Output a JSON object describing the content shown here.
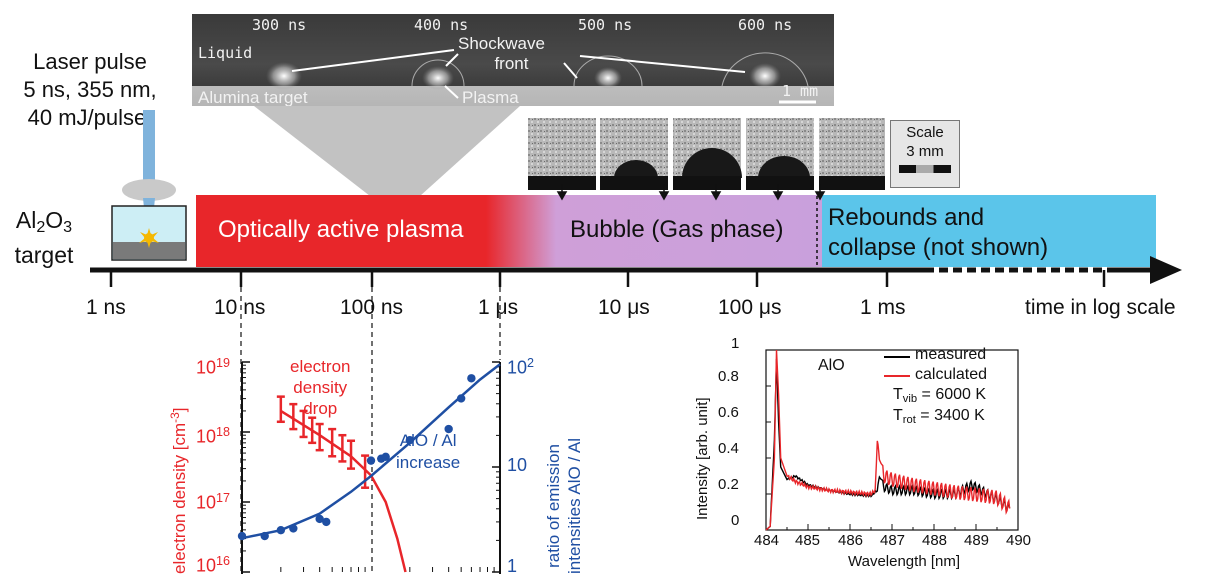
{
  "laser": {
    "line1": "Laser pulse",
    "line2": "5 ns, 355 nm,",
    "line3": "40 mJ/pulse,"
  },
  "target": {
    "formula_base": "Al",
    "formula_sub1": "2",
    "formula_mid": "O",
    "formula_sub2": "3",
    "word": "target"
  },
  "shockwave_photo": {
    "times": [
      "300 ns",
      "400 ns",
      "500 ns",
      "600 ns"
    ],
    "liquid": "Liquid",
    "shockwave_line1": "Shockwave",
    "shockwave_line2": "front",
    "alumina": "Alumina target",
    "plasma": "Plasma",
    "scalebar": "1 mm"
  },
  "bubble_photos": {
    "scale_line1": "Scale",
    "scale_line2": "3 mm"
  },
  "phases": {
    "plasma": "Optically active plasma",
    "bubble": "Bubble (Gas phase)",
    "rebound_line1": "Rebounds and",
    "rebound_line2": "collapse (not shown)"
  },
  "timeline": {
    "ticks": [
      "1 ns",
      "10 ns",
      "100 ns",
      "1 μs",
      "10 μs",
      "100 μs",
      "1 ms"
    ],
    "axis_label": "time in log scale"
  },
  "colors": {
    "plasma": "#e8262a",
    "bubble": "#c9a0dc",
    "rebound": "#5bc5ea",
    "electron_curve": "#e8262a",
    "ratio_curve": "#1f4fa3",
    "measured": "#000000",
    "calculated": "#e8262a"
  },
  "chart_data": [
    {
      "type": "scatter",
      "left_axis": {
        "label": "electron density [cm",
        "label_sup": "-3",
        "label_end": "]",
        "ticks": [
          "10",
          "10",
          "10",
          "10"
        ],
        "tick_exponents": [
          "19",
          "18",
          "17",
          "16"
        ],
        "ylim": [
          1e+16,
          1e+19
        ],
        "scale": "log"
      },
      "right_axis": {
        "label_line1": "ratio of emission",
        "label_line2": "intensities AlO / Al",
        "ticks": [
          "10",
          "10",
          "1"
        ],
        "tick_exponents": [
          "2",
          "",
          ""
        ],
        "ylim": [
          1,
          100
        ],
        "scale": "log"
      },
      "xlim_ns": [
        10,
        1000
      ],
      "annotations": {
        "electron_line1": "electron",
        "electron_line2": "density",
        "electron_line3": "drop",
        "ratio_line1": "AlO / Al",
        "ratio_line2": "increase"
      },
      "series": [
        {
          "points": [
            {
              "t_ns": 20,
              "ne": 2.2e+18,
              "err": [
                1.4e+18,
                3.2e+18
              ]
            },
            {
              "t_ns": 25,
              "ne": 1.7e+18,
              "err": [
                1.1e+18,
                2.5e+18
              ]
            },
            {
              "t_ns": 30,
              "ne": 1.35e+18,
              "err": [
                8.5e+17,
                2e+18
              ]
            },
            {
              "t_ns": 35,
              "ne": 1.1e+18,
              "err": [
                7e+17,
                1.6e+18
              ]
            },
            {
              "t_ns": 40,
              "ne": 9e+17,
              "err": [
                5.5e+17,
                1.3e+18
              ]
            },
            {
              "t_ns": 50,
              "ne": 7.5e+17,
              "err": [
                4.5e+17,
                1.1e+18
              ]
            },
            {
              "t_ns": 60,
              "ne": 6e+17,
              "err": [
                3.8e+17,
                9e+17
              ]
            },
            {
              "t_ns": 70,
              "ne": 5e+17,
              "err": [
                3e+17,
                7.5e+17
              ]
            },
            {
              "t_ns": 90,
              "ne": 3e+17,
              "err": [
                1.6e+17,
                4.6e+17
              ]
            }
          ],
          "fit": [
            {
              "t_ns": 20,
              "ne": 2e+18
            },
            {
              "t_ns": 40,
              "ne": 9e+17
            },
            {
              "t_ns": 70,
              "ne": 4.5e+17
            },
            {
              "t_ns": 100,
              "ne": 2.4e+17
            },
            {
              "t_ns": 130,
              "ne": 1e+17
            },
            {
              "t_ns": 160,
              "ne": 3e+16
            },
            {
              "t_ns": 185,
              "ne": 1e+16
            }
          ]
        },
        {
          "points": [
            {
              "t_ns": 10,
              "r": 2.2
            },
            {
              "t_ns": 15,
              "r": 2.2
            },
            {
              "t_ns": 20,
              "r": 2.5
            },
            {
              "t_ns": 25,
              "r": 2.6
            },
            {
              "t_ns": 40,
              "r": 3.2
            },
            {
              "t_ns": 45,
              "r": 3.0
            },
            {
              "t_ns": 100,
              "r": 11.5
            },
            {
              "t_ns": 120,
              "r": 12.0
            },
            {
              "t_ns": 130,
              "r": 12.5
            },
            {
              "t_ns": 200,
              "r": 18.0
            },
            {
              "t_ns": 400,
              "r": 23.0
            },
            {
              "t_ns": 500,
              "r": 45.0
            },
            {
              "t_ns": 600,
              "r": 70.0
            }
          ],
          "fit": [
            {
              "t_ns": 10,
              "r": 2.1
            },
            {
              "t_ns": 20,
              "r": 2.5
            },
            {
              "t_ns": 40,
              "r": 3.6
            },
            {
              "t_ns": 70,
              "r": 5.8
            },
            {
              "t_ns": 100,
              "r": 8.2
            },
            {
              "t_ns": 200,
              "r": 17.0
            },
            {
              "t_ns": 400,
              "r": 37.0
            },
            {
              "t_ns": 700,
              "r": 68.0
            },
            {
              "t_ns": 1000,
              "r": 95.0
            }
          ]
        }
      ]
    },
    {
      "type": "line",
      "xlabel": "Wavelength [nm]",
      "ylabel": "Intensity [arb. unit]",
      "xlim": [
        484,
        490
      ],
      "ylim": [
        0,
        1
      ],
      "xticks": [
        "484",
        "485",
        "486",
        "487",
        "488",
        "489",
        "490"
      ],
      "yticks": [
        "0",
        "0.2",
        "0.4",
        "0.6",
        "0.8",
        "1"
      ],
      "molecule": "AlO",
      "legend": {
        "measured": "measured",
        "calculated": "calculated",
        "tvib_prefix": "T",
        "tvib_sub": "vib",
        "tvib_value": " = 6000 K",
        "trot_prefix": "T",
        "trot_sub": "rot",
        "trot_value": " = 3400 K"
      },
      "series": [
        {
          "name": "measured",
          "x": [
            484.0,
            484.1,
            484.2,
            484.25,
            484.3,
            484.35,
            484.5,
            484.7,
            485.0,
            485.5,
            486.0,
            486.5,
            486.65,
            486.7,
            486.8,
            487.0,
            487.5,
            488.0,
            488.5,
            488.9,
            489.5,
            489.8
          ],
          "y": [
            0.0,
            0.02,
            0.5,
            0.95,
            0.6,
            0.35,
            0.28,
            0.3,
            0.25,
            0.22,
            0.2,
            0.19,
            0.22,
            0.3,
            0.24,
            0.22,
            0.22,
            0.2,
            0.2,
            0.25,
            0.17,
            0.12
          ]
        },
        {
          "name": "calculated",
          "x": [
            484.0,
            484.1,
            484.2,
            484.25,
            484.3,
            484.35,
            484.5,
            484.7,
            485.0,
            485.5,
            486.0,
            486.5,
            486.6,
            486.65,
            486.7,
            486.8,
            487.0,
            487.5,
            488.0,
            488.5,
            488.9,
            489.5,
            489.8
          ],
          "y": [
            0.0,
            0.02,
            0.4,
            1.0,
            0.75,
            0.4,
            0.3,
            0.27,
            0.24,
            0.22,
            0.21,
            0.2,
            0.22,
            0.5,
            0.4,
            0.3,
            0.28,
            0.25,
            0.23,
            0.21,
            0.2,
            0.18,
            0.12
          ]
        }
      ]
    }
  ]
}
